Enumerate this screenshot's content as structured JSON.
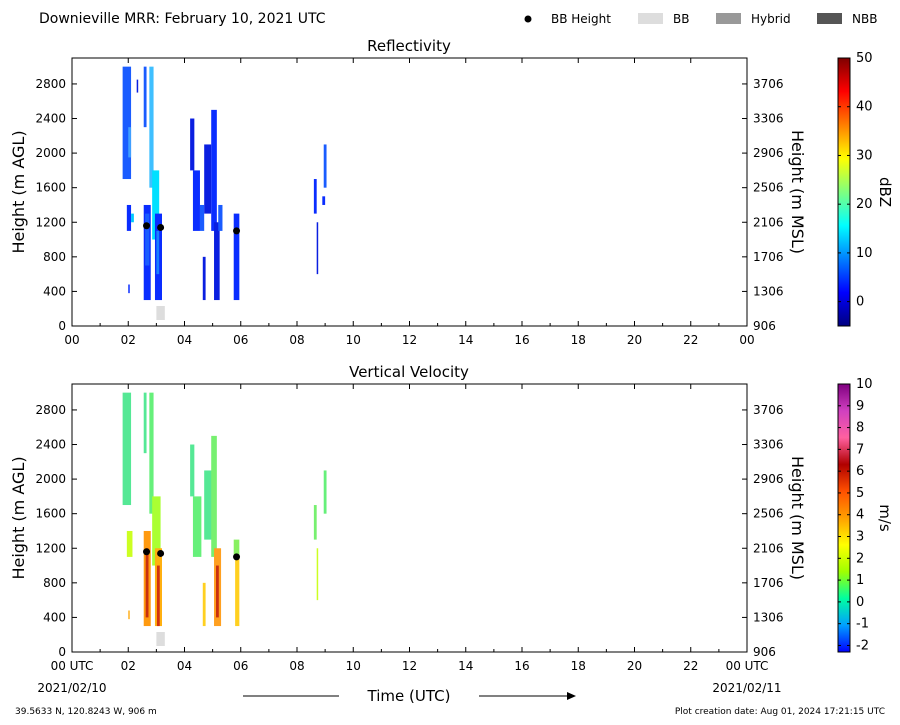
{
  "figure": {
    "title": "Downieville MRR:  February 10, 2021 UTC",
    "location": "39.5633 N, 120.8243 W, 906 m",
    "creation_date": "Plot creation date: Aug 01, 2024 17:21:15 UTC",
    "time_label": "Time (UTC)"
  },
  "legend": {
    "items": [
      {
        "label": "BB Height",
        "kind": "dot",
        "color": "#000000"
      },
      {
        "label": "BB",
        "kind": "box",
        "color": "#dddddd"
      },
      {
        "label": "Hybrid",
        "kind": "box",
        "color": "#999999"
      },
      {
        "label": "NBB",
        "kind": "box",
        "color": "#555555"
      }
    ]
  },
  "chart_data": [
    {
      "type": "heatmap",
      "title": "Reflectivity",
      "ylabel": "Height (m AGL)",
      "ylabel_right": "Height (m MSL)",
      "colorbar_label": "dBZ",
      "colorbar_range": [
        -5,
        50
      ],
      "colorbar_ticks": [
        0,
        10,
        20,
        30,
        40,
        50
      ],
      "colorbar_colors": [
        "#00007f",
        "#0000ff",
        "#007fff",
        "#00ffff",
        "#7fff7f",
        "#ffff00",
        "#ff7f00",
        "#ff0000",
        "#7f0000"
      ],
      "xlim": [
        0,
        24
      ],
      "ylim": [
        0,
        3100
      ],
      "x_ticks": [
        "00",
        "02",
        "04",
        "06",
        "08",
        "10",
        "12",
        "14",
        "16",
        "18",
        "20",
        "22",
        "00"
      ],
      "y_ticks": [
        0,
        400,
        800,
        1200,
        1600,
        2000,
        2400,
        2800
      ],
      "y_ticks_right": [
        906,
        1306,
        1706,
        2106,
        2506,
        2906,
        3306,
        3706
      ],
      "echoes": [
        {
          "t0": 1.8,
          "t1": 2.1,
          "z0": 1700,
          "z1": 3000,
          "color": "#1a5cff"
        },
        {
          "t0": 2.0,
          "t1": 2.1,
          "z0": 1950,
          "z1": 2300,
          "color": "#3f9fff"
        },
        {
          "t0": 2.3,
          "t1": 2.35,
          "z0": 2700,
          "z1": 2850,
          "color": "#0a1fe0"
        },
        {
          "t0": 2.55,
          "t1": 2.65,
          "z0": 2300,
          "z1": 3000,
          "color": "#1a5cff"
        },
        {
          "t0": 1.95,
          "t1": 2.1,
          "z0": 1100,
          "z1": 1400,
          "color": "#0a2dff"
        },
        {
          "t0": 2.1,
          "t1": 2.2,
          "z0": 1200,
          "z1": 1300,
          "color": "#00c8ff"
        },
        {
          "t0": 2.0,
          "t1": 2.05,
          "z0": 380,
          "z1": 480,
          "color": "#0a2dff"
        },
        {
          "t0": 2.55,
          "t1": 2.8,
          "z0": 300,
          "z1": 1400,
          "color": "#0a2dff"
        },
        {
          "t0": 2.6,
          "t1": 2.75,
          "z0": 700,
          "z1": 1300,
          "color": "#1a5cff"
        },
        {
          "t0": 2.75,
          "t1": 2.9,
          "z0": 1600,
          "z1": 3000,
          "color": "#3fbfff"
        },
        {
          "t0": 2.85,
          "t1": 3.1,
          "z0": 1000,
          "z1": 1800,
          "color": "#00e0ff"
        },
        {
          "t0": 2.95,
          "t1": 3.2,
          "z0": 300,
          "z1": 1300,
          "color": "#0a2dff"
        },
        {
          "t0": 3.0,
          "t1": 3.1,
          "z0": 600,
          "z1": 1100,
          "color": "#1a7fff"
        },
        {
          "t0": 4.2,
          "t1": 4.35,
          "z0": 1800,
          "z1": 2400,
          "color": "#0a1fe0"
        },
        {
          "t0": 4.3,
          "t1": 4.55,
          "z0": 1100,
          "z1": 1800,
          "color": "#0a2dff"
        },
        {
          "t0": 4.55,
          "t1": 4.7,
          "z0": 1100,
          "z1": 1400,
          "color": "#1a5cff"
        },
        {
          "t0": 4.65,
          "t1": 4.75,
          "z0": 300,
          "z1": 800,
          "color": "#0a1fe0"
        },
        {
          "t0": 4.7,
          "t1": 4.95,
          "z0": 1300,
          "z1": 2100,
          "color": "#0a1fe0"
        },
        {
          "t0": 4.95,
          "t1": 5.15,
          "z0": 1100,
          "z1": 2500,
          "color": "#0a2dff"
        },
        {
          "t0": 5.05,
          "t1": 5.25,
          "z0": 300,
          "z1": 1200,
          "color": "#0a1fe0"
        },
        {
          "t0": 5.2,
          "t1": 5.35,
          "z0": 1100,
          "z1": 1400,
          "color": "#1a5cff"
        },
        {
          "t0": 5.75,
          "t1": 5.95,
          "z0": 300,
          "z1": 1300,
          "color": "#0a2dff"
        },
        {
          "t0": 8.6,
          "t1": 8.7,
          "z0": 1300,
          "z1": 1700,
          "color": "#0a2dff"
        },
        {
          "t0": 8.7,
          "t1": 8.75,
          "z0": 600,
          "z1": 1200,
          "color": "#0a1fe0"
        },
        {
          "t0": 8.9,
          "t1": 9.0,
          "z0": 1400,
          "z1": 1500,
          "color": "#0a2dff"
        },
        {
          "t0": 8.95,
          "t1": 9.05,
          "z0": 1600,
          "z1": 2100,
          "color": "#1a5cff"
        }
      ],
      "bb_height": [
        {
          "t": 2.65,
          "z": 1160
        },
        {
          "t": 3.15,
          "z": 1140
        },
        {
          "t": 5.85,
          "z": 1100
        }
      ],
      "bb_bar": [
        {
          "t0": 3.0,
          "t1": 3.3
        }
      ]
    },
    {
      "type": "heatmap",
      "title": "Vertical Velocity",
      "ylabel": "Height (m AGL)",
      "ylabel_right": "Height (m MSL)",
      "colorbar_label": "m/s",
      "colorbar_range": [
        -2.3,
        10
      ],
      "colorbar_ticks": [
        -2,
        -1,
        0,
        1,
        2,
        3,
        4,
        5,
        6,
        7,
        8,
        9,
        10
      ],
      "colorbar_colors": [
        "#0000ff",
        "#00a0ff",
        "#00ffa0",
        "#a0ff00",
        "#ffff00",
        "#ffa000",
        "#ff5000",
        "#b00000",
        "#ff60a0",
        "#d040c0",
        "#800080"
      ],
      "xlim": [
        0,
        24
      ],
      "ylim": [
        0,
        3100
      ],
      "x_ticks": [
        "00 UTC",
        "02",
        "04",
        "06",
        "08",
        "10",
        "12",
        "14",
        "16",
        "18",
        "20",
        "22",
        "00 UTC"
      ],
      "x_dates": [
        "2021/02/10",
        "2021/02/11"
      ],
      "y_ticks": [
        0,
        400,
        800,
        1200,
        1600,
        2000,
        2400,
        2800
      ],
      "y_ticks_right": [
        906,
        1306,
        1706,
        2106,
        2506,
        2906,
        3306,
        3706
      ],
      "echoes": [
        {
          "t0": 1.8,
          "t1": 2.1,
          "z0": 1700,
          "z1": 3000,
          "color": "#55e895"
        },
        {
          "t0": 2.55,
          "t1": 2.65,
          "z0": 2300,
          "z1": 3000,
          "color": "#55e895"
        },
        {
          "t0": 1.95,
          "t1": 2.15,
          "z0": 1100,
          "z1": 1400,
          "color": "#ccff22"
        },
        {
          "t0": 2.0,
          "t1": 2.05,
          "z0": 380,
          "z1": 480,
          "color": "#ffb020"
        },
        {
          "t0": 2.55,
          "t1": 2.8,
          "z0": 300,
          "z1": 1400,
          "color": "#ff9a10"
        },
        {
          "t0": 2.62,
          "t1": 2.72,
          "z0": 400,
          "z1": 1200,
          "color": "#c83010"
        },
        {
          "t0": 2.75,
          "t1": 2.9,
          "z0": 1600,
          "z1": 3000,
          "color": "#66f07a"
        },
        {
          "t0": 2.85,
          "t1": 3.15,
          "z0": 1000,
          "z1": 1800,
          "color": "#aaff33"
        },
        {
          "t0": 2.95,
          "t1": 3.2,
          "z0": 300,
          "z1": 1200,
          "color": "#ffb010"
        },
        {
          "t0": 3.02,
          "t1": 3.12,
          "z0": 300,
          "z1": 1000,
          "color": "#d03010"
        },
        {
          "t0": 4.2,
          "t1": 4.35,
          "z0": 1800,
          "z1": 2400,
          "color": "#55e895"
        },
        {
          "t0": 4.3,
          "t1": 4.6,
          "z0": 1100,
          "z1": 1800,
          "color": "#66f07a"
        },
        {
          "t0": 4.65,
          "t1": 4.75,
          "z0": 300,
          "z1": 800,
          "color": "#ffd020"
        },
        {
          "t0": 4.7,
          "t1": 5.0,
          "z0": 1300,
          "z1": 2100,
          "color": "#55e895"
        },
        {
          "t0": 4.95,
          "t1": 5.15,
          "z0": 1100,
          "z1": 2500,
          "color": "#77f070"
        },
        {
          "t0": 5.05,
          "t1": 5.3,
          "z0": 300,
          "z1": 1200,
          "color": "#ffa020"
        },
        {
          "t0": 5.12,
          "t1": 5.22,
          "z0": 400,
          "z1": 1000,
          "color": "#c83010"
        },
        {
          "t0": 5.75,
          "t1": 5.95,
          "z0": 1100,
          "z1": 1300,
          "color": "#88f060"
        },
        {
          "t0": 5.8,
          "t1": 5.95,
          "z0": 300,
          "z1": 1100,
          "color": "#ffd020"
        },
        {
          "t0": 8.6,
          "t1": 8.7,
          "z0": 1300,
          "z1": 1700,
          "color": "#77f070"
        },
        {
          "t0": 8.7,
          "t1": 8.75,
          "z0": 600,
          "z1": 1200,
          "color": "#ccff22"
        },
        {
          "t0": 8.95,
          "t1": 9.05,
          "z0": 1600,
          "z1": 2100,
          "color": "#66f07a"
        }
      ],
      "bb_height": [
        {
          "t": 2.65,
          "z": 1160
        },
        {
          "t": 3.15,
          "z": 1140
        },
        {
          "t": 5.85,
          "z": 1100
        }
      ],
      "bb_bar": [
        {
          "t0": 3.0,
          "t1": 3.3
        }
      ]
    }
  ]
}
